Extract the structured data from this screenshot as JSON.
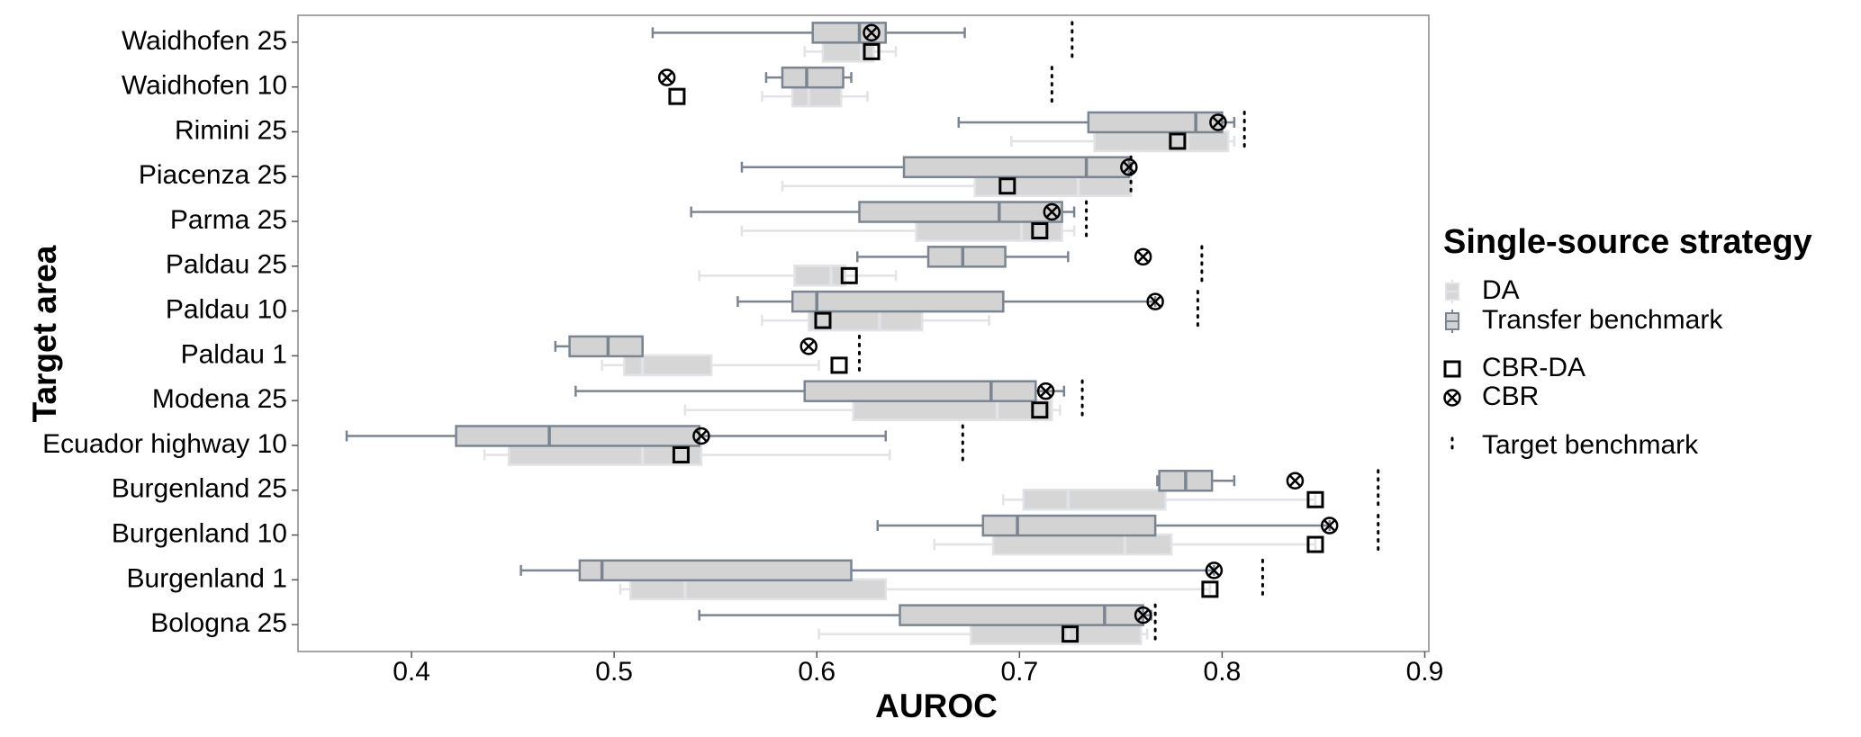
{
  "chart_data": {
    "type": "box",
    "x_label": "AUROC",
    "y_label": "Target area",
    "legend_title": "Single-source strategy",
    "categories": [
      "Waidhofen 25",
      "Waidhofen 10",
      "Rimini 25",
      "Piacenza 25",
      "Parma 25",
      "Paldau 25",
      "Paldau 10",
      "Paldau 1",
      "Modena 25",
      "Ecuador highway 10",
      "Burgenland 25",
      "Burgenland 10",
      "Burgenland 1",
      "Bologna 25"
    ],
    "xlim": [
      0.344,
      0.902
    ],
    "xticks": [
      0.4,
      0.5,
      0.6,
      0.7,
      0.8,
      0.9
    ],
    "boxes": [
      {
        "name": "DA",
        "color": "#d6d6d6",
        "edge": "#e2e3e6",
        "min": [
          0.594,
          0.573,
          0.696,
          0.583,
          0.563,
          0.542,
          0.573,
          0.494,
          0.535,
          0.436,
          0.692,
          0.658,
          0.503,
          0.601
        ],
        "q1": [
          0.603,
          0.588,
          0.737,
          0.678,
          0.649,
          0.589,
          0.596,
          0.505,
          0.618,
          0.448,
          0.702,
          0.687,
          0.508,
          0.676
        ],
        "median": [
          0.622,
          0.596,
          0.783,
          0.729,
          0.701,
          0.607,
          0.631,
          0.514,
          0.689,
          0.514,
          0.724,
          0.752,
          0.535,
          0.724
        ],
        "q3": [
          0.628,
          0.612,
          0.803,
          0.755,
          0.721,
          0.614,
          0.652,
          0.548,
          0.716,
          0.543,
          0.772,
          0.775,
          0.634,
          0.76
        ],
        "max": [
          0.639,
          0.625,
          0.806,
          0.755,
          0.727,
          0.639,
          0.685,
          0.601,
          0.72,
          0.636,
          0.846,
          0.846,
          0.794,
          0.763
        ]
      },
      {
        "name": "Transfer benchmark",
        "color": "#d3d3d3",
        "edge": "#7b8591",
        "min": [
          0.519,
          0.575,
          0.67,
          0.563,
          0.538,
          0.62,
          0.561,
          0.471,
          0.481,
          0.368,
          0.768,
          0.63,
          0.454,
          0.542
        ],
        "q1": [
          0.598,
          0.583,
          0.734,
          0.643,
          0.621,
          0.655,
          0.588,
          0.478,
          0.594,
          0.422,
          0.769,
          0.682,
          0.483,
          0.641
        ],
        "median": [
          0.621,
          0.595,
          0.787,
          0.733,
          0.69,
          0.672,
          0.6,
          0.497,
          0.686,
          0.468,
          0.782,
          0.699,
          0.494,
          0.742
        ],
        "q3": [
          0.634,
          0.613,
          0.8,
          0.754,
          0.721,
          0.693,
          0.692,
          0.514,
          0.708,
          0.542,
          0.795,
          0.767,
          0.617,
          0.761
        ],
        "max": [
          0.673,
          0.617,
          0.806,
          0.755,
          0.727,
          0.724,
          0.767,
          0.514,
          0.722,
          0.634,
          0.806,
          0.853,
          0.796,
          0.765
        ]
      }
    ],
    "points": [
      {
        "name": "CBR-DA",
        "marker": "square",
        "values": [
          0.627,
          0.531,
          0.778,
          0.694,
          0.71,
          0.616,
          0.603,
          0.611,
          0.71,
          0.533,
          0.846,
          0.846,
          0.794,
          0.725
        ]
      },
      {
        "name": "CBR",
        "marker": "x-circle",
        "values": [
          0.627,
          0.526,
          0.798,
          0.754,
          0.716,
          0.761,
          0.767,
          0.596,
          0.713,
          0.543,
          0.836,
          0.853,
          0.796,
          0.761
        ]
      }
    ],
    "reference": {
      "name": "Target benchmark",
      "values": [
        0.726,
        0.716,
        0.811,
        0.755,
        0.733,
        0.79,
        0.788,
        0.621,
        0.731,
        0.672,
        0.877,
        0.877,
        0.82,
        0.767
      ]
    }
  }
}
